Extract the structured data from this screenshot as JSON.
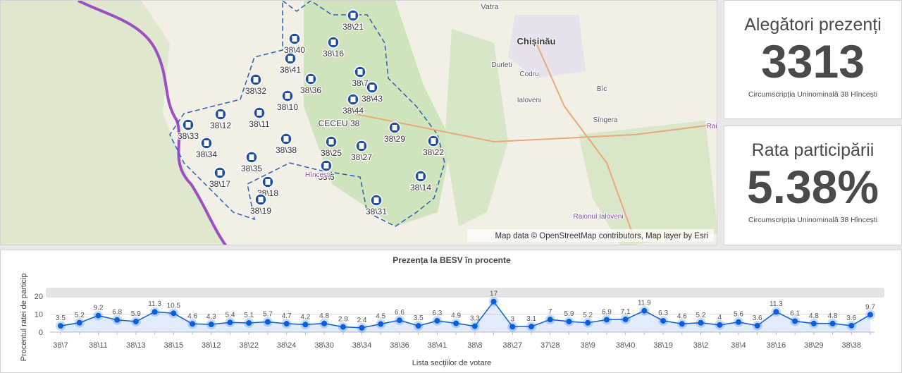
{
  "map": {
    "stations": [
      "38\\21",
      "38\\40",
      "38\\16",
      "38\\41",
      "38\\32",
      "38\\36",
      "38\\7",
      "38\\43",
      "38\\10",
      "38\\44",
      "38\\12",
      "38\\11",
      "CECEU 38",
      "38\\33",
      "38\\29",
      "38\\34",
      "38\\38",
      "38\\25",
      "38\\27",
      "38\\22",
      "38\\35",
      "38\\6",
      "38\\17",
      "38\\18",
      "38\\19",
      "38\\31",
      "38\\14"
    ],
    "places": [
      "Vatra",
      "Chișinău",
      "Durleti",
      "Codru",
      "Ialoveni",
      "Bîc",
      "Sîngera",
      "Raionul Ialoveni",
      "Raio",
      "Hîncești"
    ],
    "attribution": "Map data © OpenStreetMap contributors, Map layer by Esri"
  },
  "cards": [
    {
      "title": "Alegători prezenți",
      "value": 3313,
      "subtitle": "Circumscripția Uninominală 38 Hîncești"
    },
    {
      "title": "Rata participării",
      "value": "5.38%",
      "subtitle": "Circumscripția Uninominală 38 Hîncești"
    }
  ],
  "chart_data": {
    "type": "line",
    "title": "Prezența la BESV în procente",
    "x_label": "Lista secțiilor de votare",
    "y_label": "Procentul ratei de particip",
    "categories": [
      "38\\7",
      null,
      "38\\11",
      null,
      "38\\13",
      null,
      "38\\15",
      null,
      "38\\12",
      null,
      "38\\22",
      null,
      "38\\24",
      null,
      "38\\30",
      null,
      "38\\34",
      null,
      "38\\36",
      null,
      "38\\41",
      null,
      "38\\8",
      null,
      "38\\27",
      null,
      "37\\28",
      null,
      "38\\9",
      null,
      "38\\40",
      null,
      "38\\19",
      null,
      "38\\2",
      null,
      "38\\4",
      null,
      "38\\16",
      null,
      "38\\29",
      null,
      "38\\38",
      null
    ],
    "values": [
      3.5,
      5.2,
      9.2,
      6.8,
      5.9,
      11.3,
      10.5,
      4.6,
      4.3,
      5.4,
      5.1,
      5.7,
      4.7,
      4.2,
      4.8,
      2.9,
      2.4,
      4.5,
      6.6,
      3.5,
      6.3,
      4.9,
      3.3,
      17,
      3,
      3.1,
      7,
      5.9,
      5.2,
      6.9,
      7.1,
      11.9,
      6.3,
      4.6,
      5.2,
      4,
      5.6,
      3.6,
      11.3,
      6.1,
      4.8,
      4.8,
      3.6,
      9.7
    ],
    "color": "#0b5ed7",
    "ylim": [
      0,
      22
    ],
    "yticks": [
      0,
      10,
      20
    ],
    "grid": true
  }
}
